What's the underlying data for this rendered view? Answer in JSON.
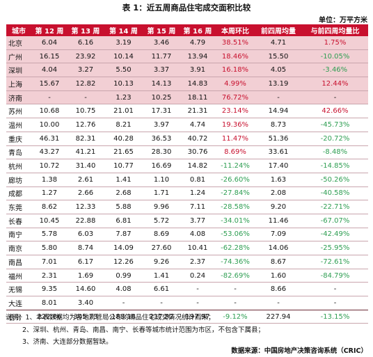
{
  "title": "表 1：近五周商品住宅成交面积比较",
  "unit": "单位：万平方米",
  "headers": [
    "城市",
    "第 12 周",
    "第 13 周",
    "第 14 周",
    "第 15 周",
    "第 16 周",
    "本周环比",
    "前四周均量",
    "与前四周均量比"
  ],
  "rows": [
    {
      "city": "北京",
      "w12": "6.04",
      "w13": "6.16",
      "w14": "3.19",
      "w15": "3.46",
      "w16": "4.79",
      "wow": "38.51%",
      "avg4": "4.71",
      "vs_avg": "1.75%",
      "wow_sign": "pos",
      "vs_sign": "pos",
      "hl": true
    },
    {
      "city": "广州",
      "w12": "16.15",
      "w13": "23.92",
      "w14": "10.14",
      "w15": "11.77",
      "w16": "13.94",
      "wow": "18.46%",
      "avg4": "15.50",
      "vs_avg": "-10.05%",
      "wow_sign": "pos",
      "vs_sign": "neg",
      "hl": true
    },
    {
      "city": "深圳",
      "w12": "4.04",
      "w13": "3.27",
      "w14": "5.50",
      "w15": "3.37",
      "w16": "3.91",
      "wow": "16.18%",
      "avg4": "4.05",
      "vs_avg": "-3.46%",
      "wow_sign": "pos",
      "vs_sign": "neg",
      "hl": true
    },
    {
      "city": "上海",
      "w12": "15.67",
      "w13": "12.82",
      "w14": "10.13",
      "w15": "14.13",
      "w16": "14.83",
      "wow": "4.99%",
      "avg4": "13.19",
      "vs_avg": "12.44%",
      "wow_sign": "pos",
      "vs_sign": "pos",
      "hl": true
    },
    {
      "city": "济南",
      "w12": "-",
      "w13": "-",
      "w14": "1.23",
      "w15": "10.25",
      "w16": "18.11",
      "wow": "76.72%",
      "avg4": "-",
      "vs_avg": "-",
      "wow_sign": "pos",
      "vs_sign": "",
      "hl": true
    },
    {
      "city": "苏州",
      "w12": "10.68",
      "w13": "10.75",
      "w14": "21.01",
      "w15": "17.31",
      "w16": "21.31",
      "wow": "23.14%",
      "avg4": "14.94",
      "vs_avg": "42.66%",
      "wow_sign": "pos",
      "vs_sign": "pos",
      "hl": false
    },
    {
      "city": "温州",
      "w12": "10.00",
      "w13": "12.76",
      "w14": "8.21",
      "w15": "3.97",
      "w16": "4.74",
      "wow": "19.36%",
      "avg4": "8.73",
      "vs_avg": "-45.73%",
      "wow_sign": "pos",
      "vs_sign": "neg",
      "hl": false
    },
    {
      "city": "重庆",
      "w12": "46.31",
      "w13": "82.31",
      "w14": "40.28",
      "w15": "36.53",
      "w16": "40.72",
      "wow": "11.47%",
      "avg4": "51.36",
      "vs_avg": "-20.72%",
      "wow_sign": "pos",
      "vs_sign": "neg",
      "hl": false
    },
    {
      "city": "青岛",
      "w12": "43.27",
      "w13": "41.21",
      "w14": "21.65",
      "w15": "28.30",
      "w16": "30.76",
      "wow": "8.69%",
      "avg4": "33.61",
      "vs_avg": "-8.48%",
      "wow_sign": "pos",
      "vs_sign": "neg",
      "hl": false
    },
    {
      "city": "杭州",
      "w12": "10.72",
      "w13": "31.40",
      "w14": "10.77",
      "w15": "16.69",
      "w16": "14.82",
      "wow": "-11.24%",
      "avg4": "17.40",
      "vs_avg": "-14.85%",
      "wow_sign": "neg",
      "vs_sign": "neg",
      "hl": false
    },
    {
      "city": "廊坊",
      "w12": "1.38",
      "w13": "2.61",
      "w14": "1.41",
      "w15": "1.10",
      "w16": "0.81",
      "wow": "-26.60%",
      "avg4": "1.63",
      "vs_avg": "-50.26%",
      "wow_sign": "neg",
      "vs_sign": "neg",
      "hl": false
    },
    {
      "city": "成都",
      "w12": "1.27",
      "w13": "2.66",
      "w14": "2.68",
      "w15": "1.71",
      "w16": "1.24",
      "wow": "-27.84%",
      "avg4": "2.08",
      "vs_avg": "-40.58%",
      "wow_sign": "neg",
      "vs_sign": "neg",
      "hl": false
    },
    {
      "city": "东莞",
      "w12": "8.62",
      "w13": "12.33",
      "w14": "5.88",
      "w15": "9.96",
      "w16": "7.11",
      "wow": "-28.58%",
      "avg4": "9.20",
      "vs_avg": "-22.71%",
      "wow_sign": "neg",
      "vs_sign": "neg",
      "hl": false
    },
    {
      "city": "长春",
      "w12": "10.45",
      "w13": "22.88",
      "w14": "6.81",
      "w15": "5.72",
      "w16": "3.77",
      "wow": "-34.01%",
      "avg4": "11.46",
      "vs_avg": "-67.07%",
      "wow_sign": "neg",
      "vs_sign": "neg",
      "hl": false
    },
    {
      "city": "南宁",
      "w12": "5.78",
      "w13": "6.03",
      "w14": "7.87",
      "w15": "8.69",
      "w16": "4.08",
      "wow": "-53.06%",
      "avg4": "7.09",
      "vs_avg": "-42.49%",
      "wow_sign": "neg",
      "vs_sign": "neg",
      "hl": false
    },
    {
      "city": "南京",
      "w12": "5.80",
      "w13": "8.74",
      "w14": "14.09",
      "w15": "27.60",
      "w16": "10.41",
      "wow": "-62.28%",
      "avg4": "14.06",
      "vs_avg": "-25.95%",
      "wow_sign": "neg",
      "vs_sign": "neg",
      "hl": false
    },
    {
      "city": "南昌",
      "w12": "7.01",
      "w13": "6.17",
      "w14": "12.26",
      "w15": "9.26",
      "w16": "2.37",
      "wow": "-74.36%",
      "avg4": "8.67",
      "vs_avg": "-72.61%",
      "wow_sign": "neg",
      "vs_sign": "neg",
      "hl": false
    },
    {
      "city": "福州",
      "w12": "2.31",
      "w13": "1.69",
      "w14": "0.99",
      "w15": "1.41",
      "w16": "0.24",
      "wow": "-82.69%",
      "avg4": "1.60",
      "vs_avg": "-84.79%",
      "wow_sign": "neg",
      "vs_sign": "neg",
      "hl": false
    },
    {
      "city": "无锡",
      "w12": "9.35",
      "w13": "14.60",
      "w14": "4.08",
      "w15": "6.61",
      "w16": "-",
      "wow": "-",
      "avg4": "8.66",
      "vs_avg": "-",
      "wow_sign": "",
      "vs_sign": "",
      "hl": false
    },
    {
      "city": "大连",
      "w12": "8.01",
      "w13": "3.40",
      "w14": "-",
      "w15": "-",
      "w16": "-",
      "wow": "-",
      "avg4": "-",
      "vs_avg": "-",
      "wow_sign": "",
      "vs_sign": "",
      "hl": false
    }
  ],
  "total": {
    "city": "合计",
    "w12": "222.86",
    "w13": "305.73",
    "w14": "188.18",
    "w15": "217.82",
    "w16": "197.97",
    "wow": "-9.12%",
    "avg4": "227.94",
    "vs_avg": "-13.15%",
    "wow_sign": "neg",
    "vs_sign": "neg"
  },
  "notes": [
    "说明：1、本表数据均为各地房管局公布的商品住宅成交情况统计而来；",
    "2、深圳、杭州、青岛、南昌、南宁、长春等城市统计范围为市区，不包含下属县；",
    "3、济南、大连部分数据暂缺。"
  ],
  "source": "数据来源：中国房地产决策咨询系统（CRIC）",
  "colors": {
    "header_bg": "#c8102e",
    "highlight_row": "#f2cfd4",
    "positive": "#c8102e",
    "negative": "#2e9e52"
  }
}
